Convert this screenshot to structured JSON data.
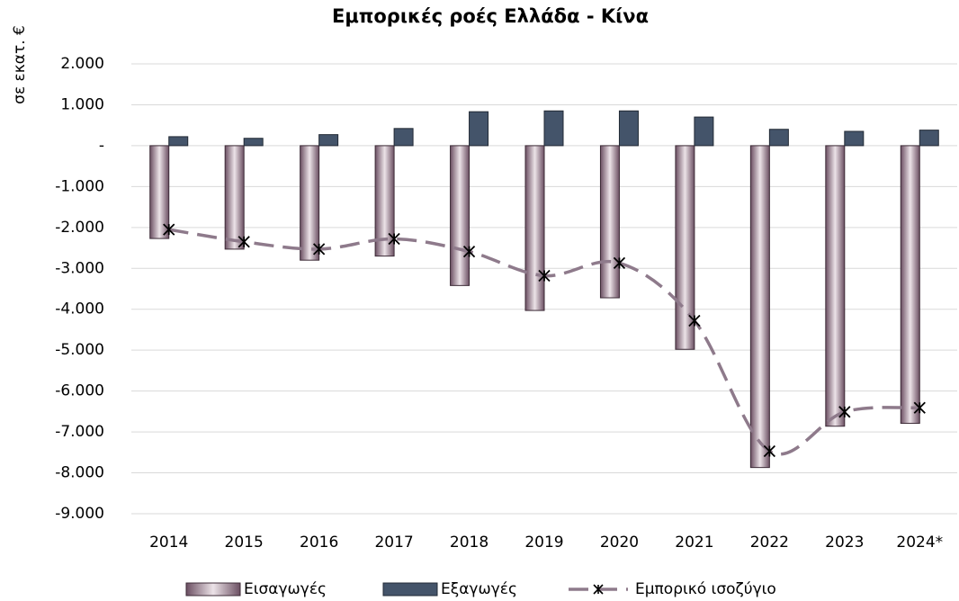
{
  "chart_data": {
    "type": "bar",
    "title": "Εμπορικές ροές Ελλάδα - Κίνα",
    "y_label": "σε εκατ. €",
    "categories": [
      "2014",
      "2015",
      "2016",
      "2017",
      "2018",
      "2019",
      "2020",
      "2021",
      "2022",
      "2023",
      "2024*"
    ],
    "series": [
      {
        "name": "Εισαγωγές",
        "type": "bar",
        "color": "#6b4f62",
        "values": [
          -2270,
          -2530,
          -2800,
          -2700,
          -3420,
          -4030,
          -3720,
          -4980,
          -7870,
          -6860,
          -6790
        ]
      },
      {
        "name": "Εξαγωγές",
        "type": "bar",
        "color": "#44546a",
        "values": [
          220,
          180,
          270,
          420,
          830,
          850,
          850,
          700,
          400,
          350,
          380
        ]
      },
      {
        "name": "Εμπορικό ισοζύγιο",
        "type": "line",
        "color": "#8e7a8b",
        "values": [
          -2050,
          -2350,
          -2530,
          -2280,
          -2590,
          -3180,
          -2870,
          -4280,
          -7470,
          -6510,
          -6410
        ]
      }
    ],
    "ylim": [
      -9000,
      2000
    ],
    "yticks": [
      {
        "value": 2000,
        "label": "2.000"
      },
      {
        "value": 1000,
        "label": "1.000"
      },
      {
        "value": 0,
        "label": "-"
      },
      {
        "value": -1000,
        "label": "-1.000"
      },
      {
        "value": -2000,
        "label": "-2.000"
      },
      {
        "value": -3000,
        "label": "-3.000"
      },
      {
        "value": -4000,
        "label": "-4.000"
      },
      {
        "value": -5000,
        "label": "-5.000"
      },
      {
        "value": -6000,
        "label": "-6.000"
      },
      {
        "value": -7000,
        "label": "-7.000"
      },
      {
        "value": -8000,
        "label": "-8.000"
      },
      {
        "value": -9000,
        "label": "-9.000"
      }
    ],
    "grid": true
  }
}
